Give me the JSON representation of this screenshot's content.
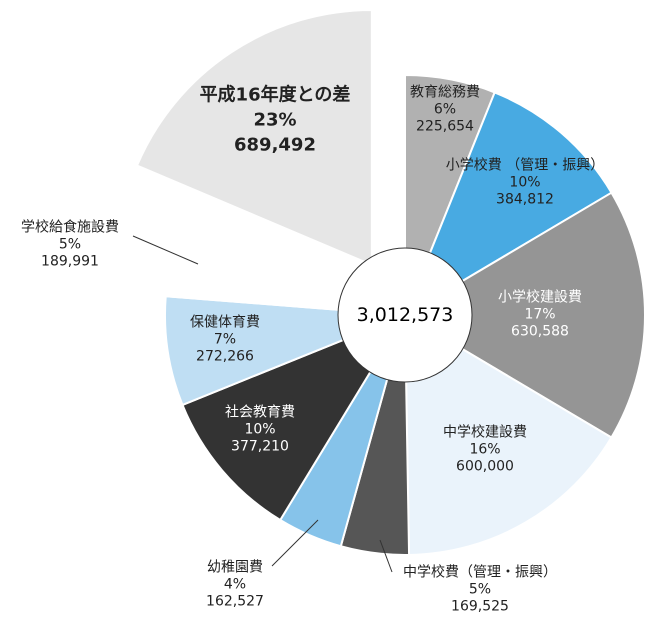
{
  "chart_data": {
    "type": "pie",
    "center_label": "3,012,573",
    "categories": [
      "教育総務費",
      "小学校費\n（管理・振興）",
      "小学校建設費",
      "中学校建設費",
      "中学校費（管理・振興）",
      "幼稚園費",
      "社会教育費",
      "保健体育費",
      "学校給食施設費",
      "平成16年度との差"
    ],
    "values": [
      225654,
      384812,
      630588,
      600000,
      169525,
      162527,
      377210,
      272266,
      189991,
      689492
    ],
    "value_labels": [
      "225,654",
      "384,812",
      "630,588",
      "600,000",
      "169,525",
      "162,527",
      "377,210",
      "272,266",
      "189,991",
      "689,492"
    ],
    "percent_labels": [
      "6%",
      "10%",
      "17%",
      "16%",
      "5%",
      "4%",
      "10%",
      "7%",
      "5%",
      "23%"
    ],
    "colors": [
      "#b1b1b1",
      "#48aae2",
      "#959595",
      "#eaf3fb",
      "#565656",
      "#86c3ea",
      "#333333",
      "#bfdef3",
      "#ffffff",
      "#e6e6e6"
    ],
    "exploded": [
      9
    ]
  }
}
